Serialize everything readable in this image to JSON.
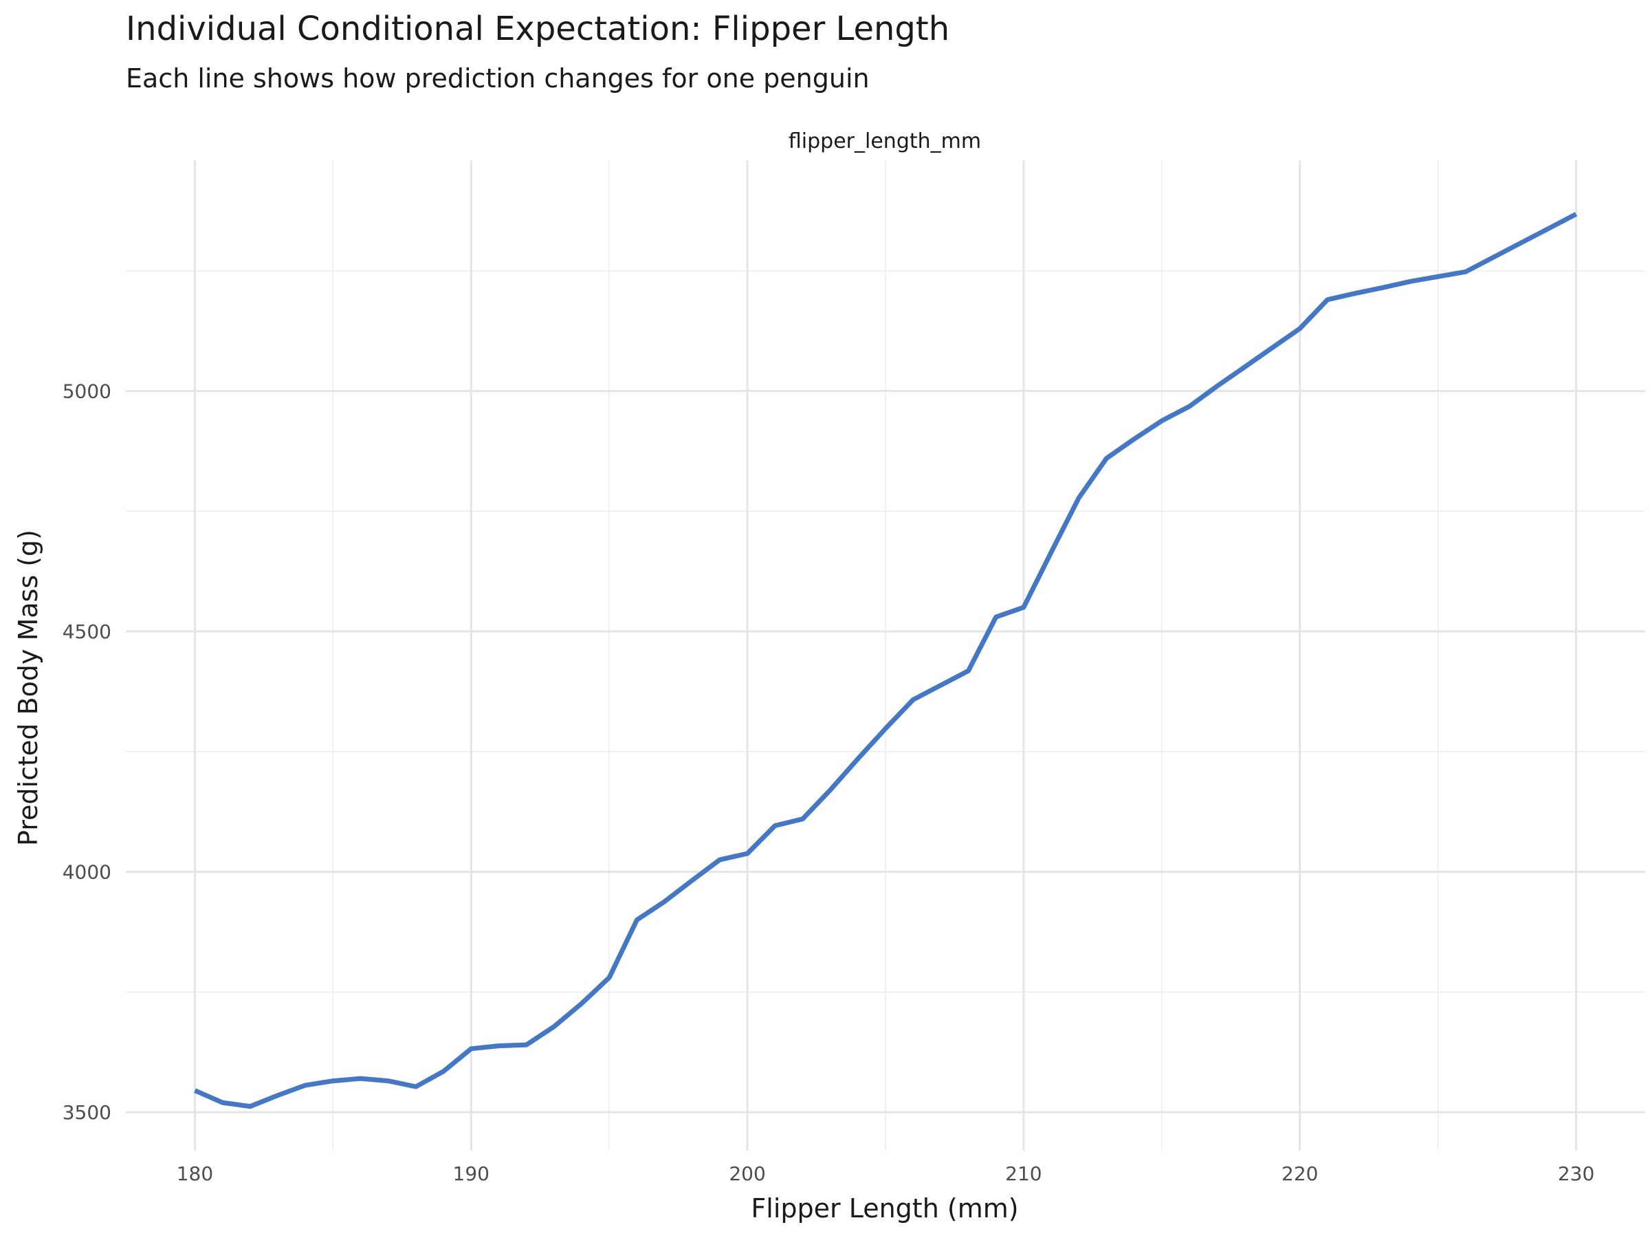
{
  "chart_data": {
    "type": "line",
    "title": "Individual Conditional Expectation: Flipper Length",
    "subtitle": "Each line shows how prediction changes for one penguin",
    "facet_label": "flipper_length_mm",
    "xlabel": "Flipper Length (mm)",
    "ylabel": "Predicted Body Mass (g)",
    "xlim": [
      177.5,
      232.5
    ],
    "ylim": [
      3420,
      5480
    ],
    "xticks": [
      180,
      190,
      200,
      210,
      220,
      230
    ],
    "yticks": [
      3500,
      4000,
      4500,
      5000
    ],
    "grid": true,
    "line_color": "#4477C4",
    "series": [
      {
        "x": [
          180,
          181,
          182,
          183,
          184,
          185,
          186,
          187,
          188,
          189,
          190,
          191,
          192,
          193,
          194,
          195,
          196,
          197,
          198,
          199,
          200,
          201,
          202,
          203,
          204,
          205,
          206,
          207,
          208,
          209,
          210,
          211,
          212,
          213,
          214,
          215,
          216,
          217,
          218,
          219,
          220,
          221,
          222,
          223,
          224,
          225,
          226,
          227,
          228,
          229,
          230
        ],
        "y": [
          3545,
          3520,
          3512,
          3535,
          3556,
          3565,
          3570,
          3565,
          3553,
          3585,
          3632,
          3638,
          3640,
          3678,
          3726,
          3780,
          3900,
          3938,
          3982,
          4025,
          4038,
          4096,
          4110,
          4170,
          4235,
          4298,
          4358,
          4388,
          4418,
          4530,
          4550,
          4665,
          4778,
          4860,
          4900,
          4938,
          4968,
          5010,
          5050,
          5090,
          5130,
          5190,
          5203,
          5215,
          5228,
          5238,
          5248,
          5278,
          5308,
          5338,
          5368
        ]
      }
    ]
  }
}
